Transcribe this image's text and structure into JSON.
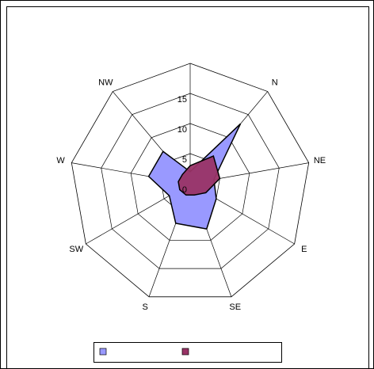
{
  "chart_data": {
    "type": "radar",
    "categories": [
      null,
      "N",
      "NE",
      "E",
      "SE",
      "S",
      "SW",
      "W",
      "NW"
    ],
    "series": [
      {
        "color": "#9999ff",
        "values": [
          2,
          13,
          4,
          5,
          8,
          7,
          4,
          7,
          7
        ]
      },
      {
        "color": "#993366",
        "values": [
          3,
          6,
          5,
          3,
          2,
          2,
          2,
          2,
          2
        ]
      }
    ],
    "ylim": [
      0,
      20
    ],
    "yticks": [
      0,
      5,
      10,
      15
    ],
    "grid": true,
    "legend": "bottom"
  }
}
